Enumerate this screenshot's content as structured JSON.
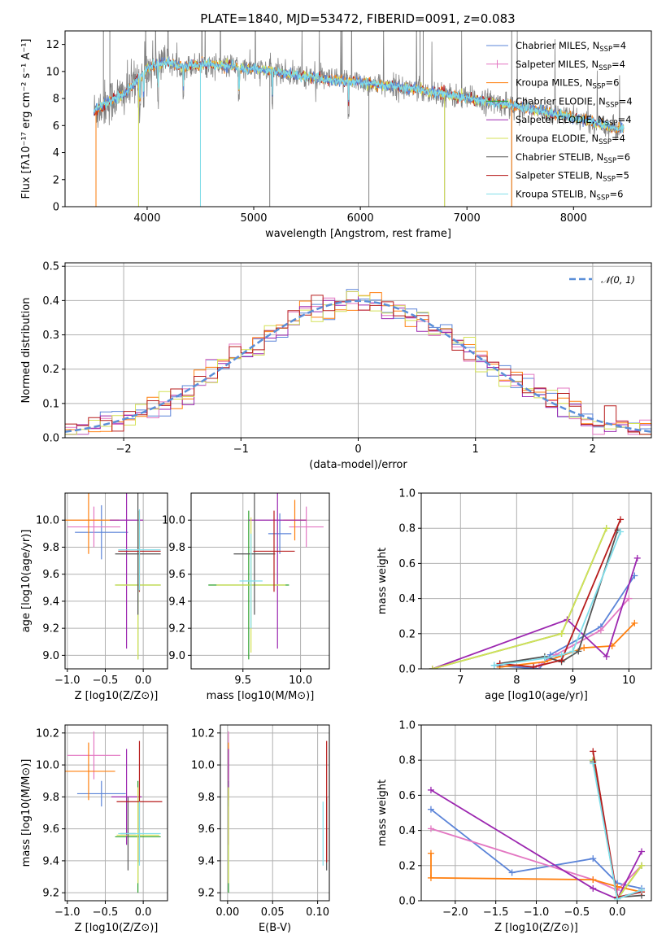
{
  "title": "PLATE=1840, MJD=53472, FIBERID=0091, z=0.083",
  "colors": {
    "frame": "#000000",
    "grid": "#b0b0b0",
    "spectrum_obs": "#808080"
  },
  "chart_data": [
    {
      "id": "spectrum",
      "type": "line",
      "xlabel": "wavelength [Angstrom, rest frame]",
      "ylabel": "Flux [fλ10⁻¹⁷ erg cm⁻² s⁻¹ A⁻¹]",
      "xlim": [
        3230,
        8730
      ],
      "ylim": [
        0,
        13
      ],
      "xticks": [
        4000,
        5000,
        6000,
        7000,
        8000
      ],
      "yticks": [
        0,
        2,
        4,
        6,
        8,
        10,
        12
      ],
      "grid": false,
      "legend_position": "top-right",
      "continuum": {
        "x": [
          3500,
          3600,
          3700,
          3800,
          3900,
          4000,
          4100,
          4200,
          4300,
          4400,
          4500,
          4600,
          4700,
          4800,
          4900,
          5000,
          5200,
          5400,
          5600,
          5800,
          6000,
          6200,
          6400,
          6600,
          6800,
          7000,
          7200,
          7400,
          7600,
          7800,
          8000,
          8200,
          8400
        ],
        "y": [
          7.0,
          7.6,
          8.0,
          8.4,
          9.3,
          10.2,
          10.6,
          10.7,
          10.4,
          10.4,
          10.5,
          10.5,
          10.4,
          10.4,
          10.2,
          10.2,
          10.0,
          9.7,
          9.5,
          9.3,
          9.2,
          9.0,
          8.8,
          8.6,
          8.3,
          8.0,
          7.8,
          7.5,
          7.2,
          6.9,
          6.6,
          6.2,
          5.8
        ]
      },
      "observed_line_range": [
        3500,
        8470
      ],
      "legend": [
        {
          "label": "Chabrier MILES, N",
          "sub": "SSP",
          "suffix": "=4",
          "color": "#5b84d8",
          "marker": "none"
        },
        {
          "label": "Salpeter MILES, N",
          "sub": "SSP",
          "suffix": "=4",
          "color": "#e377c2",
          "marker": "plus"
        },
        {
          "label": "Kroupa MILES, N",
          "sub": "SSP",
          "suffix": "=6",
          "color": "#ff7f0e",
          "marker": "none"
        },
        {
          "label": "Chabrier ELODIE, N",
          "sub": "SSP",
          "suffix": "=4",
          "color": "#2ca02c",
          "marker": "none"
        },
        {
          "label": "Salpeter ELODIE, N",
          "sub": "SSP",
          "suffix": "=4",
          "color": "#9c27b0",
          "marker": "none"
        },
        {
          "label": "Kroupa ELODIE, N",
          "sub": "SSP",
          "suffix": "=4",
          "color": "#d4e157",
          "marker": "none"
        },
        {
          "label": "Chabrier STELIB, N",
          "sub": "SSP",
          "suffix": "=6",
          "color": "#555555",
          "marker": "none"
        },
        {
          "label": "Salpeter STELIB, N",
          "sub": "SSP",
          "suffix": "=5",
          "color": "#b71c1c",
          "marker": "none"
        },
        {
          "label": "Kroupa STELIB, N",
          "sub": "SSP",
          "suffix": "=6",
          "color": "#80deea",
          "marker": "none"
        }
      ]
    },
    {
      "id": "residuals",
      "type": "line",
      "xlabel": "(data-model)/error",
      "ylabel": "Normed distribution",
      "xlim": [
        -2.5,
        2.5
      ],
      "ylim": [
        0,
        0.51
      ],
      "xticks": [
        -2,
        -1,
        0,
        1,
        2
      ],
      "yticks": [
        0.0,
        0.1,
        0.2,
        0.3,
        0.4,
        0.5
      ],
      "grid": true,
      "legend_position": "top-right",
      "gaussian_label": "𝒩(0, 1)",
      "gaussian_color": "#5b8fd8",
      "bin_width": 0.1
    },
    {
      "id": "age_vs_Z",
      "type": "scatter",
      "xlabel": "Z [log10(Z/Z⊙)]",
      "ylabel": "age [log10(age/yr)]",
      "xlim": [
        -1.03,
        0.32
      ],
      "ylim": [
        8.9,
        10.2
      ],
      "xticks": [
        -1.0,
        -0.5,
        0.0
      ],
      "yticks": [
        9.0,
        9.2,
        9.4,
        9.6,
        9.8,
        10.0
      ],
      "points": [
        {
          "x": -0.55,
          "xerr": 0.35,
          "y": 9.91,
          "yerr": 0.2,
          "color": "#5b84d8"
        },
        {
          "x": -0.65,
          "xerr": 0.35,
          "y": 9.95,
          "yerr": 0.15,
          "color": "#e377c2"
        },
        {
          "x": -0.72,
          "xerr": 0.4,
          "y": 10.0,
          "yerr": 0.25,
          "color": "#ff7f0e"
        },
        {
          "x": -0.07,
          "xerr": 0.3,
          "y": 9.52,
          "yerr": 0.55,
          "color": "#2ca02c"
        },
        {
          "x": -0.22,
          "xerr": 0.22,
          "y": 10.0,
          "yerr": 0.95,
          "color": "#9c27b0"
        },
        {
          "x": -0.07,
          "xerr": 0.3,
          "y": 9.52,
          "yerr": 0.55,
          "color": "#d4e157"
        },
        {
          "x": -0.07,
          "xerr": 0.3,
          "y": 9.75,
          "yerr": 0.45,
          "color": "#555555"
        },
        {
          "x": -0.05,
          "xerr": 0.28,
          "y": 9.77,
          "yerr": 0.3,
          "color": "#b71c1c"
        },
        {
          "x": -0.05,
          "xerr": 0.28,
          "y": 9.78,
          "yerr": 0.3,
          "color": "#80deea"
        }
      ]
    },
    {
      "id": "age_vs_mass",
      "type": "scatter",
      "xlabel": "mass [log10(M/M⊙)]",
      "ylabel": "",
      "xlim": [
        9.05,
        10.25
      ],
      "ylim": [
        8.9,
        10.2
      ],
      "xticks": [
        9.5,
        10.0
      ],
      "yticks": [
        9.0,
        9.2,
        9.4,
        9.6,
        9.8,
        10.0
      ],
      "points": [
        {
          "x": 9.82,
          "xerr": 0.1,
          "y": 9.9,
          "yerr": 0.15,
          "color": "#5b84d8"
        },
        {
          "x": 10.05,
          "xerr": 0.15,
          "y": 9.95,
          "yerr": 0.15,
          "color": "#e377c2"
        },
        {
          "x": 9.95,
          "xerr": 0.1,
          "y": 10.0,
          "yerr": 0.15,
          "color": "#ff7f0e"
        },
        {
          "x": 9.55,
          "xerr": 0.35,
          "y": 9.52,
          "yerr": 0.55,
          "color": "#2ca02c"
        },
        {
          "x": 9.8,
          "xerr": 0.25,
          "y": 10.0,
          "yerr": 0.95,
          "color": "#9c27b0"
        },
        {
          "x": 9.57,
          "xerr": 0.3,
          "y": 9.52,
          "yerr": 0.5,
          "color": "#d4e157"
        },
        {
          "x": 9.6,
          "xerr": 0.18,
          "y": 9.75,
          "yerr": 0.45,
          "color": "#555555"
        },
        {
          "x": 9.77,
          "xerr": 0.18,
          "y": 9.77,
          "yerr": 0.3,
          "color": "#b71c1c"
        },
        {
          "x": 9.57,
          "xerr": 0.1,
          "y": 9.55,
          "yerr": 0.35,
          "color": "#80deea"
        }
      ]
    },
    {
      "id": "weight_vs_age",
      "type": "line",
      "xlabel": "age [log10(age/yr)]",
      "ylabel": "mass weight",
      "xlim": [
        6.3,
        10.4
      ],
      "ylim": [
        0,
        1
      ],
      "xticks": [
        7,
        8,
        9,
        10
      ],
      "yticks": [
        0.0,
        0.2,
        0.4,
        0.6,
        0.8,
        1.0
      ],
      "grid": true,
      "series": [
        {
          "color": "#5b84d8",
          "x": [
            7.6,
            8.4,
            8.6,
            9.5,
            10.1
          ],
          "y": [
            0.02,
            0.0,
            0.08,
            0.24,
            0.53
          ]
        },
        {
          "color": "#e377c2",
          "x": [
            8.4,
            8.7,
            9.5,
            10.0
          ],
          "y": [
            0.02,
            0.08,
            0.22,
            0.4
          ]
        },
        {
          "color": "#ff7f0e",
          "x": [
            7.7,
            8.5,
            9.2,
            9.7,
            10.1
          ],
          "y": [
            0.01,
            0.04,
            0.12,
            0.13,
            0.26
          ]
        },
        {
          "color": "#2ca02c",
          "x": [
            6.5,
            8.8,
            9.6
          ],
          "y": [
            0.0,
            0.2,
            0.8
          ]
        },
        {
          "color": "#9c27b0",
          "x": [
            6.5,
            8.9,
            9.6,
            10.15
          ],
          "y": [
            0.0,
            0.28,
            0.07,
            0.63
          ]
        },
        {
          "color": "#d4e157",
          "x": [
            6.5,
            8.8,
            9.6
          ],
          "y": [
            0.0,
            0.2,
            0.8
          ]
        },
        {
          "color": "#555555",
          "x": [
            7.7,
            8.5,
            8.8,
            9.1,
            9.8
          ],
          "y": [
            0.03,
            0.07,
            0.04,
            0.1,
            0.79
          ]
        },
        {
          "color": "#b71c1c",
          "x": [
            7.7,
            8.3,
            8.8,
            9.85
          ],
          "y": [
            0.03,
            0.01,
            0.05,
            0.85
          ]
        },
        {
          "color": "#80deea",
          "x": [
            7.6,
            8.5,
            8.8,
            9.0,
            9.85
          ],
          "y": [
            0.02,
            0.06,
            0.08,
            0.1,
            0.78
          ]
        }
      ]
    },
    {
      "id": "mass_vs_Z",
      "type": "scatter",
      "xlabel": "Z [log10(Z/Z⊙)]",
      "ylabel": "mass [log10(M/M⊙)]",
      "xlim": [
        -1.03,
        0.32
      ],
      "ylim": [
        9.15,
        10.25
      ],
      "xticks": [
        -1.0,
        -0.5,
        0.0
      ],
      "yticks": [
        9.2,
        9.4,
        9.6,
        9.8,
        10.0,
        10.2
      ],
      "points": [
        {
          "x": -0.55,
          "xerr": 0.32,
          "y": 9.82,
          "yerr": 0.08,
          "color": "#5b84d8"
        },
        {
          "x": -0.65,
          "xerr": 0.35,
          "y": 10.06,
          "yerr": 0.15,
          "color": "#e377c2"
        },
        {
          "x": -0.72,
          "xerr": 0.35,
          "y": 9.96,
          "yerr": 0.18,
          "color": "#ff7f0e"
        },
        {
          "x": -0.07,
          "xerr": 0.3,
          "y": 9.55,
          "yerr": 0.35,
          "color": "#2ca02c"
        },
        {
          "x": -0.22,
          "xerr": 0.2,
          "y": 9.8,
          "yerr": 0.3,
          "color": "#9c27b0"
        },
        {
          "x": -0.07,
          "xerr": 0.28,
          "y": 9.56,
          "yerr": 0.3,
          "color": "#d4e157"
        },
        {
          "x": -0.2,
          "xerr": 0.1,
          "y": 9.57,
          "yerr": 0.23,
          "color": "#555555"
        },
        {
          "x": -0.05,
          "xerr": 0.3,
          "y": 9.77,
          "yerr": 0.38,
          "color": "#b71c1c"
        },
        {
          "x": -0.05,
          "xerr": 0.28,
          "y": 9.57,
          "yerr": 0.2,
          "color": "#80deea"
        }
      ]
    },
    {
      "id": "mass_vs_ebv",
      "type": "scatter",
      "xlabel": "E(B-V)",
      "ylabel": "",
      "xlim": [
        -0.008,
        0.113
      ],
      "ylim": [
        9.15,
        10.25
      ],
      "xticks": [
        0.0,
        0.05,
        0.1
      ],
      "yticks": [
        9.2,
        9.4,
        9.6,
        9.8,
        10.0,
        10.2
      ],
      "xtick_labels": [
        "0.00",
        "0.05",
        "0.10"
      ],
      "points": [
        {
          "x": 0.001,
          "y": 9.82,
          "yerr": 0.08,
          "color": "#5b84d8"
        },
        {
          "x": 0.001,
          "y": 10.06,
          "yerr": 0.15,
          "color": "#e377c2"
        },
        {
          "x": 0.001,
          "y": 9.96,
          "yerr": 0.18,
          "color": "#ff7f0e"
        },
        {
          "x": 0.001,
          "y": 9.55,
          "yerr": 0.35,
          "color": "#2ca02c"
        },
        {
          "x": 0.001,
          "y": 9.8,
          "yerr": 0.3,
          "color": "#9c27b0"
        },
        {
          "x": 0.001,
          "y": 9.56,
          "yerr": 0.3,
          "color": "#d4e157"
        },
        {
          "x": 0.11,
          "y": 9.57,
          "yerr": 0.23,
          "color": "#555555"
        },
        {
          "x": 0.11,
          "y": 9.77,
          "yerr": 0.38,
          "color": "#b71c1c"
        },
        {
          "x": 0.106,
          "y": 9.57,
          "yerr": 0.2,
          "color": "#80deea"
        }
      ]
    },
    {
      "id": "weight_vs_Z",
      "type": "line",
      "xlabel": "Z [log10(Z/Z⊙)]",
      "ylabel": "mass weight",
      "xlim": [
        -2.42,
        0.42
      ],
      "ylim": [
        0,
        1
      ],
      "xticks": [
        -2.0,
        -1.5,
        -1.0,
        -0.5,
        0.0
      ],
      "yticks": [
        0.0,
        0.2,
        0.4,
        0.6,
        0.8,
        1.0
      ],
      "grid": true,
      "series": [
        {
          "color": "#5b84d8",
          "x": [
            -2.3,
            -1.3,
            -0.3,
            0.0,
            0.3
          ],
          "y": [
            0.52,
            0.16,
            0.24,
            0.1,
            0.07
          ]
        },
        {
          "color": "#e377c2",
          "x": [
            -2.3,
            -0.3,
            0.0,
            0.3
          ],
          "y": [
            0.41,
            0.12,
            0.06,
            0.2
          ]
        },
        {
          "color": "#ff7f0e",
          "x": [
            -2.3,
            -2.3,
            -0.3,
            0.0,
            0.3
          ],
          "y": [
            0.27,
            0.13,
            0.12,
            0.08,
            0.05
          ]
        },
        {
          "color": "#2ca02c",
          "x": [
            -0.3,
            0.0,
            0.3
          ],
          "y": [
            0.8,
            0.01,
            0.2
          ]
        },
        {
          "color": "#9c27b0",
          "x": [
            -2.3,
            -0.3,
            0.0,
            0.3
          ],
          "y": [
            0.63,
            0.07,
            0.01,
            0.28
          ]
        },
        {
          "color": "#d4e157",
          "x": [
            -0.3,
            0.0,
            0.3
          ],
          "y": [
            0.8,
            0.01,
            0.2
          ]
        },
        {
          "color": "#555555",
          "x": [
            -0.3,
            0.0,
            0.3
          ],
          "y": [
            0.79,
            0.02,
            0.03
          ]
        },
        {
          "color": "#b71c1c",
          "x": [
            -0.3,
            0.0,
            0.3
          ],
          "y": [
            0.85,
            0.02,
            0.05
          ]
        },
        {
          "color": "#80deea",
          "x": [
            -0.3,
            0.0,
            0.3
          ],
          "y": [
            0.78,
            0.01,
            0.06
          ]
        }
      ]
    }
  ]
}
